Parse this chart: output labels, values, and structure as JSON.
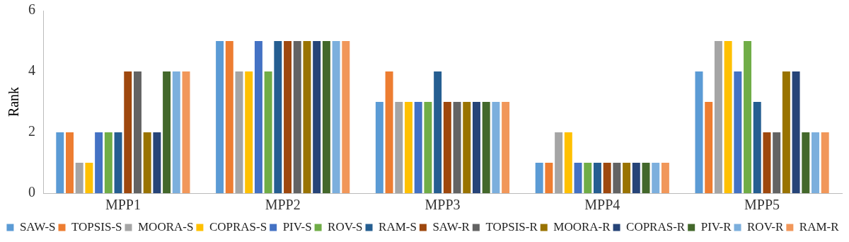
{
  "chart_data": {
    "type": "bar",
    "ylabel": "Rank",
    "categories": [
      "MPP1",
      "MPP2",
      "MPP3",
      "MPP4",
      "MPP5"
    ],
    "ylim": [
      0,
      6
    ],
    "yticks": [
      0,
      2,
      4,
      6
    ],
    "grid": false,
    "legend": "bottom",
    "series": [
      {
        "name": "SAW-S",
        "color": "#5b9bd5",
        "values": [
          2,
          5,
          3,
          1,
          4
        ]
      },
      {
        "name": "TOPSIS-S",
        "color": "#ed7d31",
        "values": [
          2,
          5,
          4,
          1,
          3
        ]
      },
      {
        "name": "MOORA-S",
        "color": "#a5a5a5",
        "values": [
          1,
          4,
          3,
          2,
          5
        ]
      },
      {
        "name": "COPRAS-S",
        "color": "#ffc000",
        "values": [
          1,
          4,
          3,
          2,
          5
        ]
      },
      {
        "name": "PIV-S",
        "color": "#4472c4",
        "values": [
          2,
          5,
          3,
          1,
          4
        ]
      },
      {
        "name": "ROV-S",
        "color": "#70ad47",
        "values": [
          2,
          4,
          3,
          1,
          5
        ]
      },
      {
        "name": "RAM-S",
        "color": "#255e91",
        "values": [
          2,
          5,
          4,
          1,
          3
        ]
      },
      {
        "name": "SAW-R",
        "color": "#9e480e",
        "values": [
          4,
          5,
          3,
          1,
          2
        ]
      },
      {
        "name": "TOPSIS-R",
        "color": "#636363",
        "values": [
          4,
          5,
          3,
          1,
          2
        ]
      },
      {
        "name": "MOORA-R",
        "color": "#997300",
        "values": [
          2,
          5,
          3,
          1,
          4
        ]
      },
      {
        "name": "COPRAS-R",
        "color": "#264478",
        "values": [
          2,
          5,
          3,
          1,
          4
        ]
      },
      {
        "name": "PIV-R",
        "color": "#43682b",
        "values": [
          4,
          5,
          3,
          1,
          2
        ]
      },
      {
        "name": "ROV-R",
        "color": "#7cafdd",
        "values": [
          4,
          5,
          3,
          1,
          2
        ]
      },
      {
        "name": "RAM-R",
        "color": "#f1975a",
        "values": [
          4,
          5,
          3,
          1,
          2
        ]
      }
    ]
  }
}
